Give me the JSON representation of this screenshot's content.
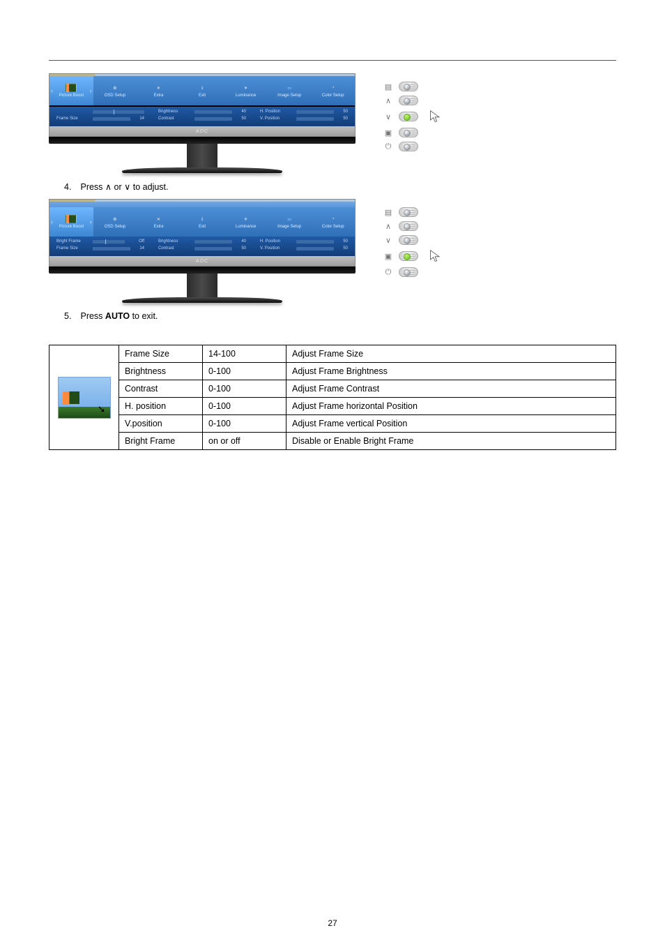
{
  "page_number": "27",
  "step4": {
    "num": "4.",
    "text_before": "Press ",
    "sym1": "∧",
    "joiner": " or ",
    "sym2": "∨",
    "text_after": "  to adjust."
  },
  "step5": {
    "num": "5.",
    "text_before": "Press ",
    "bold": "AUTO",
    "text_after": " to exit."
  },
  "osd": {
    "tabs": [
      {
        "label": "Picture Boost"
      },
      {
        "label": "OSD Setup"
      },
      {
        "label": "Extra"
      },
      {
        "label": "Exit"
      },
      {
        "label": "Luminance"
      },
      {
        "label": "Image Setup"
      },
      {
        "label": "Color Setup"
      }
    ],
    "brand": "AOC",
    "screen1": {
      "active_tab": 0,
      "rows": [
        [
          {
            "label": "",
            "fill": 0,
            "val": "",
            "type": "onoff"
          },
          {
            "label": "Brightness",
            "fill": 40,
            "val": "40"
          },
          {
            "label": "H. Position",
            "fill": 55,
            "val": "50"
          }
        ],
        [
          {
            "label": "Frame Size",
            "fill": 16,
            "val": "14"
          },
          {
            "label": "Contrast",
            "fill": 50,
            "val": "50"
          },
          {
            "label": "V. Position",
            "fill": 55,
            "val": "50"
          }
        ]
      ]
    },
    "screen2": {
      "active_tab": 0,
      "rows": [
        [
          {
            "label": "Bright Frame",
            "fill": 0,
            "val": "",
            "type": "onoff",
            "on": "Off",
            "off": ""
          },
          {
            "label": "Brightness",
            "fill": 40,
            "val": "40"
          },
          {
            "label": "H. Position",
            "fill": 55,
            "val": "50"
          }
        ],
        [
          {
            "label": "Frame Size",
            "fill": 16,
            "val": "14"
          },
          {
            "label": "Contrast",
            "fill": 50,
            "val": "50"
          },
          {
            "label": "V. Position",
            "fill": 55,
            "val": "50"
          }
        ]
      ]
    }
  },
  "buttons": {
    "sym": {
      "menu": "▤",
      "up": "∧",
      "down": "∨",
      "auto": "▣",
      "power": "⏻"
    }
  },
  "table": {
    "rows": [
      {
        "name": "Frame Size",
        "range": "14-100",
        "desc": "Adjust Frame Size"
      },
      {
        "name": "Brightness",
        "range": "0-100",
        "desc": "Adjust Frame Brightness"
      },
      {
        "name": "Contrast",
        "range": "0-100",
        "desc": "Adjust Frame Contrast"
      },
      {
        "name": "H. position",
        "range": "0-100",
        "desc": "Adjust Frame horizontal Position"
      },
      {
        "name": "V.position",
        "range": "0-100",
        "desc": "Adjust Frame vertical Position"
      },
      {
        "name": "Bright Frame",
        "range": "on or off",
        "desc": "Disable or Enable Bright Frame"
      }
    ]
  },
  "style": {
    "osd_bg_top": "#4d8fd6",
    "osd_bg_bottom": "#133d78",
    "slider_fill": "#d9442c",
    "slider_track": "#3b6aa8"
  }
}
